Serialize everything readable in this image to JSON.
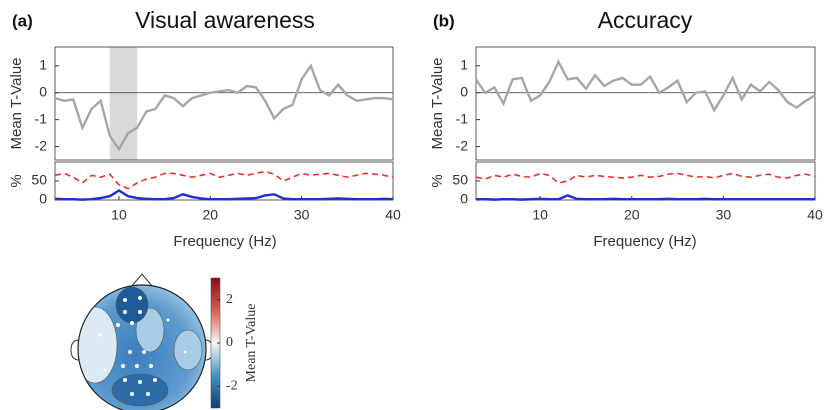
{
  "chart_data": [
    {
      "type": "line",
      "label": "(a)",
      "title": "Visual awareness",
      "ylabel": "Mean T-Value",
      "x": [
        3,
        4,
        5,
        6,
        7,
        8,
        9,
        10,
        11,
        12,
        13,
        14,
        15,
        16,
        17,
        18,
        19,
        20,
        21,
        22,
        23,
        24,
        25,
        26,
        27,
        28,
        29,
        30,
        31,
        32,
        33,
        34,
        35,
        36,
        37,
        38,
        39,
        40
      ],
      "series": [
        {
          "color": "#a6a6a6",
          "values": [
            -0.2,
            -0.3,
            -0.25,
            -1.3,
            -0.6,
            -0.3,
            -1.6,
            -2.1,
            -1.5,
            -1.3,
            -0.7,
            -0.6,
            -0.1,
            -0.2,
            -0.5,
            -0.2,
            -0.1,
            0,
            0.05,
            0.1,
            0,
            0.25,
            0.2,
            -0.3,
            -0.95,
            -0.6,
            -0.45,
            0.5,
            1.0,
            0.1,
            -0.1,
            0.3,
            -0.1,
            -0.3,
            -0.25,
            -0.2,
            -0.2,
            -0.25
          ]
        }
      ],
      "xlim": [
        3,
        40
      ],
      "ylim": [
        -2.5,
        1.7
      ],
      "yticks": [
        -2,
        -1,
        0,
        1
      ],
      "zero_line": true,
      "highlight_x": [
        9,
        12
      ]
    },
    {
      "type": "line",
      "ylabel": "%",
      "xlabel": "Frequency (Hz)",
      "x": [
        3,
        4,
        5,
        6,
        7,
        8,
        9,
        10,
        11,
        12,
        13,
        14,
        15,
        16,
        17,
        18,
        19,
        20,
        21,
        22,
        23,
        24,
        25,
        26,
        27,
        28,
        29,
        30,
        31,
        32,
        33,
        34,
        35,
        36,
        37,
        38,
        39,
        40
      ],
      "series": [
        {
          "color": "#e8322b",
          "dash": true,
          "values": [
            65,
            70,
            60,
            45,
            65,
            60,
            68,
            40,
            30,
            45,
            55,
            60,
            70,
            70,
            65,
            60,
            65,
            70,
            60,
            65,
            70,
            65,
            70,
            75,
            68,
            50,
            60,
            70,
            65,
            68,
            70,
            65,
            60,
            65,
            70,
            68,
            65,
            60
          ]
        },
        {
          "color": "#1f2fd6",
          "values": [
            3,
            2,
            2,
            1,
            2,
            5,
            10,
            25,
            10,
            5,
            3,
            2,
            2,
            5,
            15,
            8,
            4,
            2,
            2,
            2,
            3,
            4,
            5,
            12,
            15,
            4,
            2,
            2,
            2,
            2,
            3,
            4,
            3,
            2,
            2,
            2,
            3,
            2
          ]
        }
      ],
      "xlim": [
        3,
        40
      ],
      "ylim": [
        0,
        100
      ],
      "yticks": [
        0,
        50
      ],
      "xticks": [
        10,
        20,
        30,
        40
      ]
    },
    {
      "type": "line",
      "label": "(b)",
      "title": "Accuracy",
      "ylabel": "Mean T-Value",
      "x": [
        3,
        4,
        5,
        6,
        7,
        8,
        9,
        10,
        11,
        12,
        13,
        14,
        15,
        16,
        17,
        18,
        19,
        20,
        21,
        22,
        23,
        24,
        25,
        26,
        27,
        28,
        29,
        30,
        31,
        32,
        33,
        34,
        35,
        36,
        37,
        38,
        39,
        40
      ],
      "series": [
        {
          "color": "#a6a6a6",
          "values": [
            0.5,
            0,
            0.2,
            -0.4,
            0.5,
            0.55,
            -0.3,
            -0.1,
            0.4,
            1.15,
            0.5,
            0.55,
            0.15,
            0.65,
            0.25,
            0.45,
            0.55,
            0.3,
            0.3,
            0.6,
            0,
            0.2,
            0.45,
            -0.35,
            0,
            0.05,
            -0.65,
            -0.1,
            0.55,
            -0.25,
            0.3,
            0.05,
            0.4,
            0.1,
            -0.35,
            -0.55,
            -0.3,
            -0.1
          ]
        }
      ],
      "xlim": [
        3,
        40
      ],
      "ylim": [
        -2.5,
        1.7
      ],
      "yticks": [
        -2,
        -1,
        0,
        1
      ],
      "zero_line": true
    },
    {
      "type": "line",
      "ylabel": "%",
      "xlabel": "Frequency (Hz)",
      "x": [
        3,
        4,
        5,
        6,
        7,
        8,
        9,
        10,
        11,
        12,
        13,
        14,
        15,
        16,
        17,
        18,
        19,
        20,
        21,
        22,
        23,
        24,
        25,
        26,
        27,
        28,
        29,
        30,
        31,
        32,
        33,
        34,
        35,
        36,
        37,
        38,
        39,
        40
      ],
      "series": [
        {
          "color": "#e8322b",
          "dash": true,
          "values": [
            60,
            55,
            65,
            60,
            68,
            62,
            60,
            70,
            65,
            45,
            50,
            65,
            60,
            65,
            62,
            60,
            58,
            60,
            65,
            60,
            62,
            68,
            70,
            65,
            60,
            62,
            58,
            65,
            70,
            62,
            60,
            65,
            68,
            60,
            58,
            65,
            68,
            62
          ]
        },
        {
          "color": "#1f2fd6",
          "values": [
            2,
            2,
            1,
            2,
            2,
            1,
            2,
            3,
            2,
            2,
            12,
            3,
            2,
            2,
            2,
            3,
            2,
            2,
            2,
            2,
            2,
            3,
            2,
            2,
            2,
            3,
            2,
            2,
            2,
            2,
            2,
            2,
            2,
            2,
            2,
            2,
            2,
            2
          ]
        }
      ],
      "xlim": [
        3,
        40
      ],
      "ylim": [
        0,
        100
      ],
      "yticks": [
        0,
        50
      ],
      "xticks": [
        10,
        20,
        30,
        40
      ]
    },
    {
      "type": "colorbar",
      "ylabel": "Mean T-Value",
      "ylim": [
        -3,
        3
      ],
      "yticks": [
        2,
        0,
        -2
      ]
    }
  ]
}
